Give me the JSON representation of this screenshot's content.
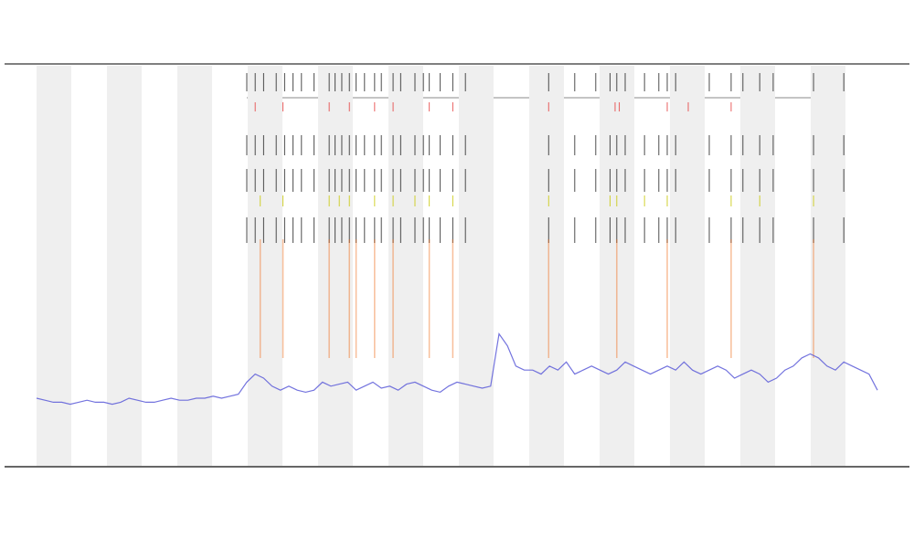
{
  "chart_data": {
    "type": "line",
    "x": [
      0,
      1,
      2,
      3,
      4,
      5,
      6,
      7,
      8,
      9,
      10,
      11,
      12,
      13,
      14,
      15,
      16,
      17,
      18,
      19,
      20,
      21,
      22,
      23,
      24,
      25,
      26,
      27,
      28,
      29,
      30,
      31,
      32,
      33,
      34,
      35,
      36,
      37,
      38,
      39,
      40,
      41,
      42,
      43,
      44,
      45,
      46,
      47,
      48,
      49,
      50,
      51,
      52,
      53,
      54,
      55,
      56,
      57,
      58,
      59,
      60,
      61,
      62,
      63,
      64,
      65,
      66,
      67,
      68,
      69,
      70,
      71,
      72,
      73,
      74,
      75,
      76,
      77,
      78,
      79,
      80,
      81,
      82,
      83,
      84,
      85,
      86,
      87,
      88,
      89,
      90,
      91,
      92,
      93,
      94,
      95,
      96,
      97,
      98,
      99,
      100
    ],
    "xlim": [
      0,
      100
    ],
    "ylim": [
      0,
      100
    ],
    "series": [
      {
        "color": "#5a5ad8",
        "values": [
          17,
          16.5,
          16,
          16,
          15.5,
          16,
          16.5,
          16,
          16,
          15.5,
          16,
          17,
          16.5,
          16,
          16,
          16.5,
          17,
          16.5,
          16.5,
          17,
          17,
          17.5,
          17,
          17.5,
          18,
          21,
          23,
          22,
          20,
          19,
          20,
          19,
          18.5,
          19,
          21,
          20,
          20.5,
          21,
          19,
          20,
          21,
          19.5,
          20,
          19,
          20.5,
          21,
          20,
          19,
          18.5,
          20,
          21,
          20.5,
          20,
          19.5,
          20,
          33,
          30,
          25,
          24,
          24,
          23,
          25,
          24,
          26,
          23,
          24,
          25,
          24,
          23,
          24,
          26,
          25,
          24,
          23,
          24,
          25,
          24,
          26,
          24,
          23,
          24,
          25,
          24,
          22,
          23,
          24,
          23,
          21,
          22,
          24,
          25,
          27,
          28,
          27,
          25,
          24,
          26,
          25,
          24,
          23,
          19
        ]
      }
    ],
    "events": [
      {
        "color": "#222222",
        "x": [
          25,
          26,
          27,
          28.5,
          29.5,
          30.5,
          31.5,
          33,
          34.8,
          35.5,
          36.3,
          37.2,
          38,
          39,
          40.2,
          41,
          42.4,
          43.3,
          45,
          46,
          46.7,
          48,
          49.5,
          51,
          60.9,
          64,
          66.5,
          68.2,
          69,
          70,
          72.3,
          74,
          75,
          76,
          80,
          82.6,
          84,
          86,
          87.6,
          92.4,
          96
        ]
      },
      {
        "color": "#e63a3a",
        "x": [
          26,
          29.3,
          34.8,
          37.2,
          40.2,
          42.4,
          46.7,
          49.5,
          60.9,
          68.8,
          69.3,
          75,
          77.5,
          82.6
        ]
      },
      {
        "color": "#c8c800",
        "x": [
          26.6,
          29.3,
          34.8,
          36,
          37.2,
          40.2,
          42.4,
          45,
          46.7,
          49.5,
          60.9,
          68.2,
          69,
          72.3,
          75,
          82.6,
          86,
          92.4
        ]
      },
      {
        "color": "#f07020",
        "x": [
          26.6,
          29.3,
          34.8,
          37.2,
          38,
          40.2,
          42.4,
          46.7,
          49.5,
          60.9,
          69,
          75,
          82.6,
          92.4
        ]
      }
    ]
  }
}
